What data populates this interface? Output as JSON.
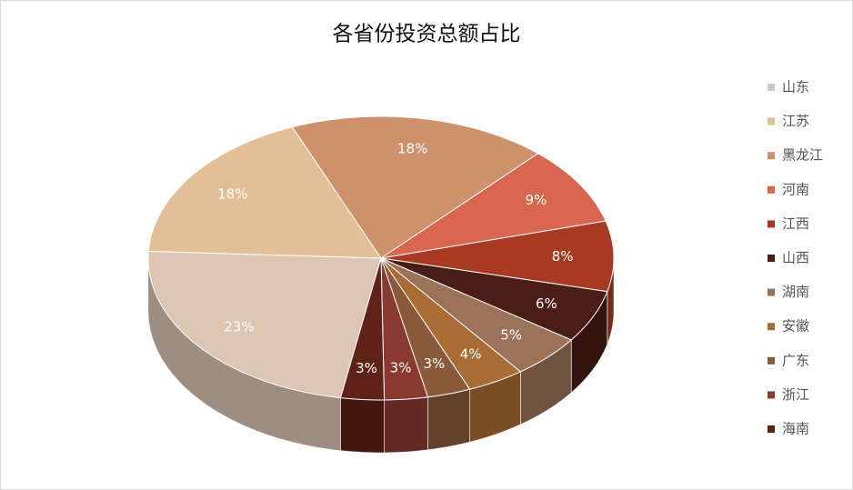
{
  "chart_data": {
    "type": "pie",
    "title": "各省份投资总额占比",
    "categories": [
      "山东",
      "江苏",
      "黑龙江",
      "河南",
      "江西",
      "山西",
      "湖南",
      "安徽",
      "广东",
      "浙江",
      "海南"
    ],
    "values": [
      23,
      18,
      18,
      9,
      8,
      6,
      5,
      4,
      3,
      3,
      3
    ],
    "value_labels": [
      "23%",
      "18%",
      "18%",
      "9%",
      "8%",
      "6%",
      "5%",
      "4%",
      "3%",
      "3%",
      "3%"
    ],
    "colors": [
      "#dcc5b3",
      "#e3bf95",
      "#cf916c",
      "#d9664f",
      "#a83a22",
      "#4a1d16",
      "#9c7259",
      "#a86c34",
      "#8a5a3a",
      "#8a3a30",
      "#5e2316"
    ],
    "legend": "right"
  }
}
